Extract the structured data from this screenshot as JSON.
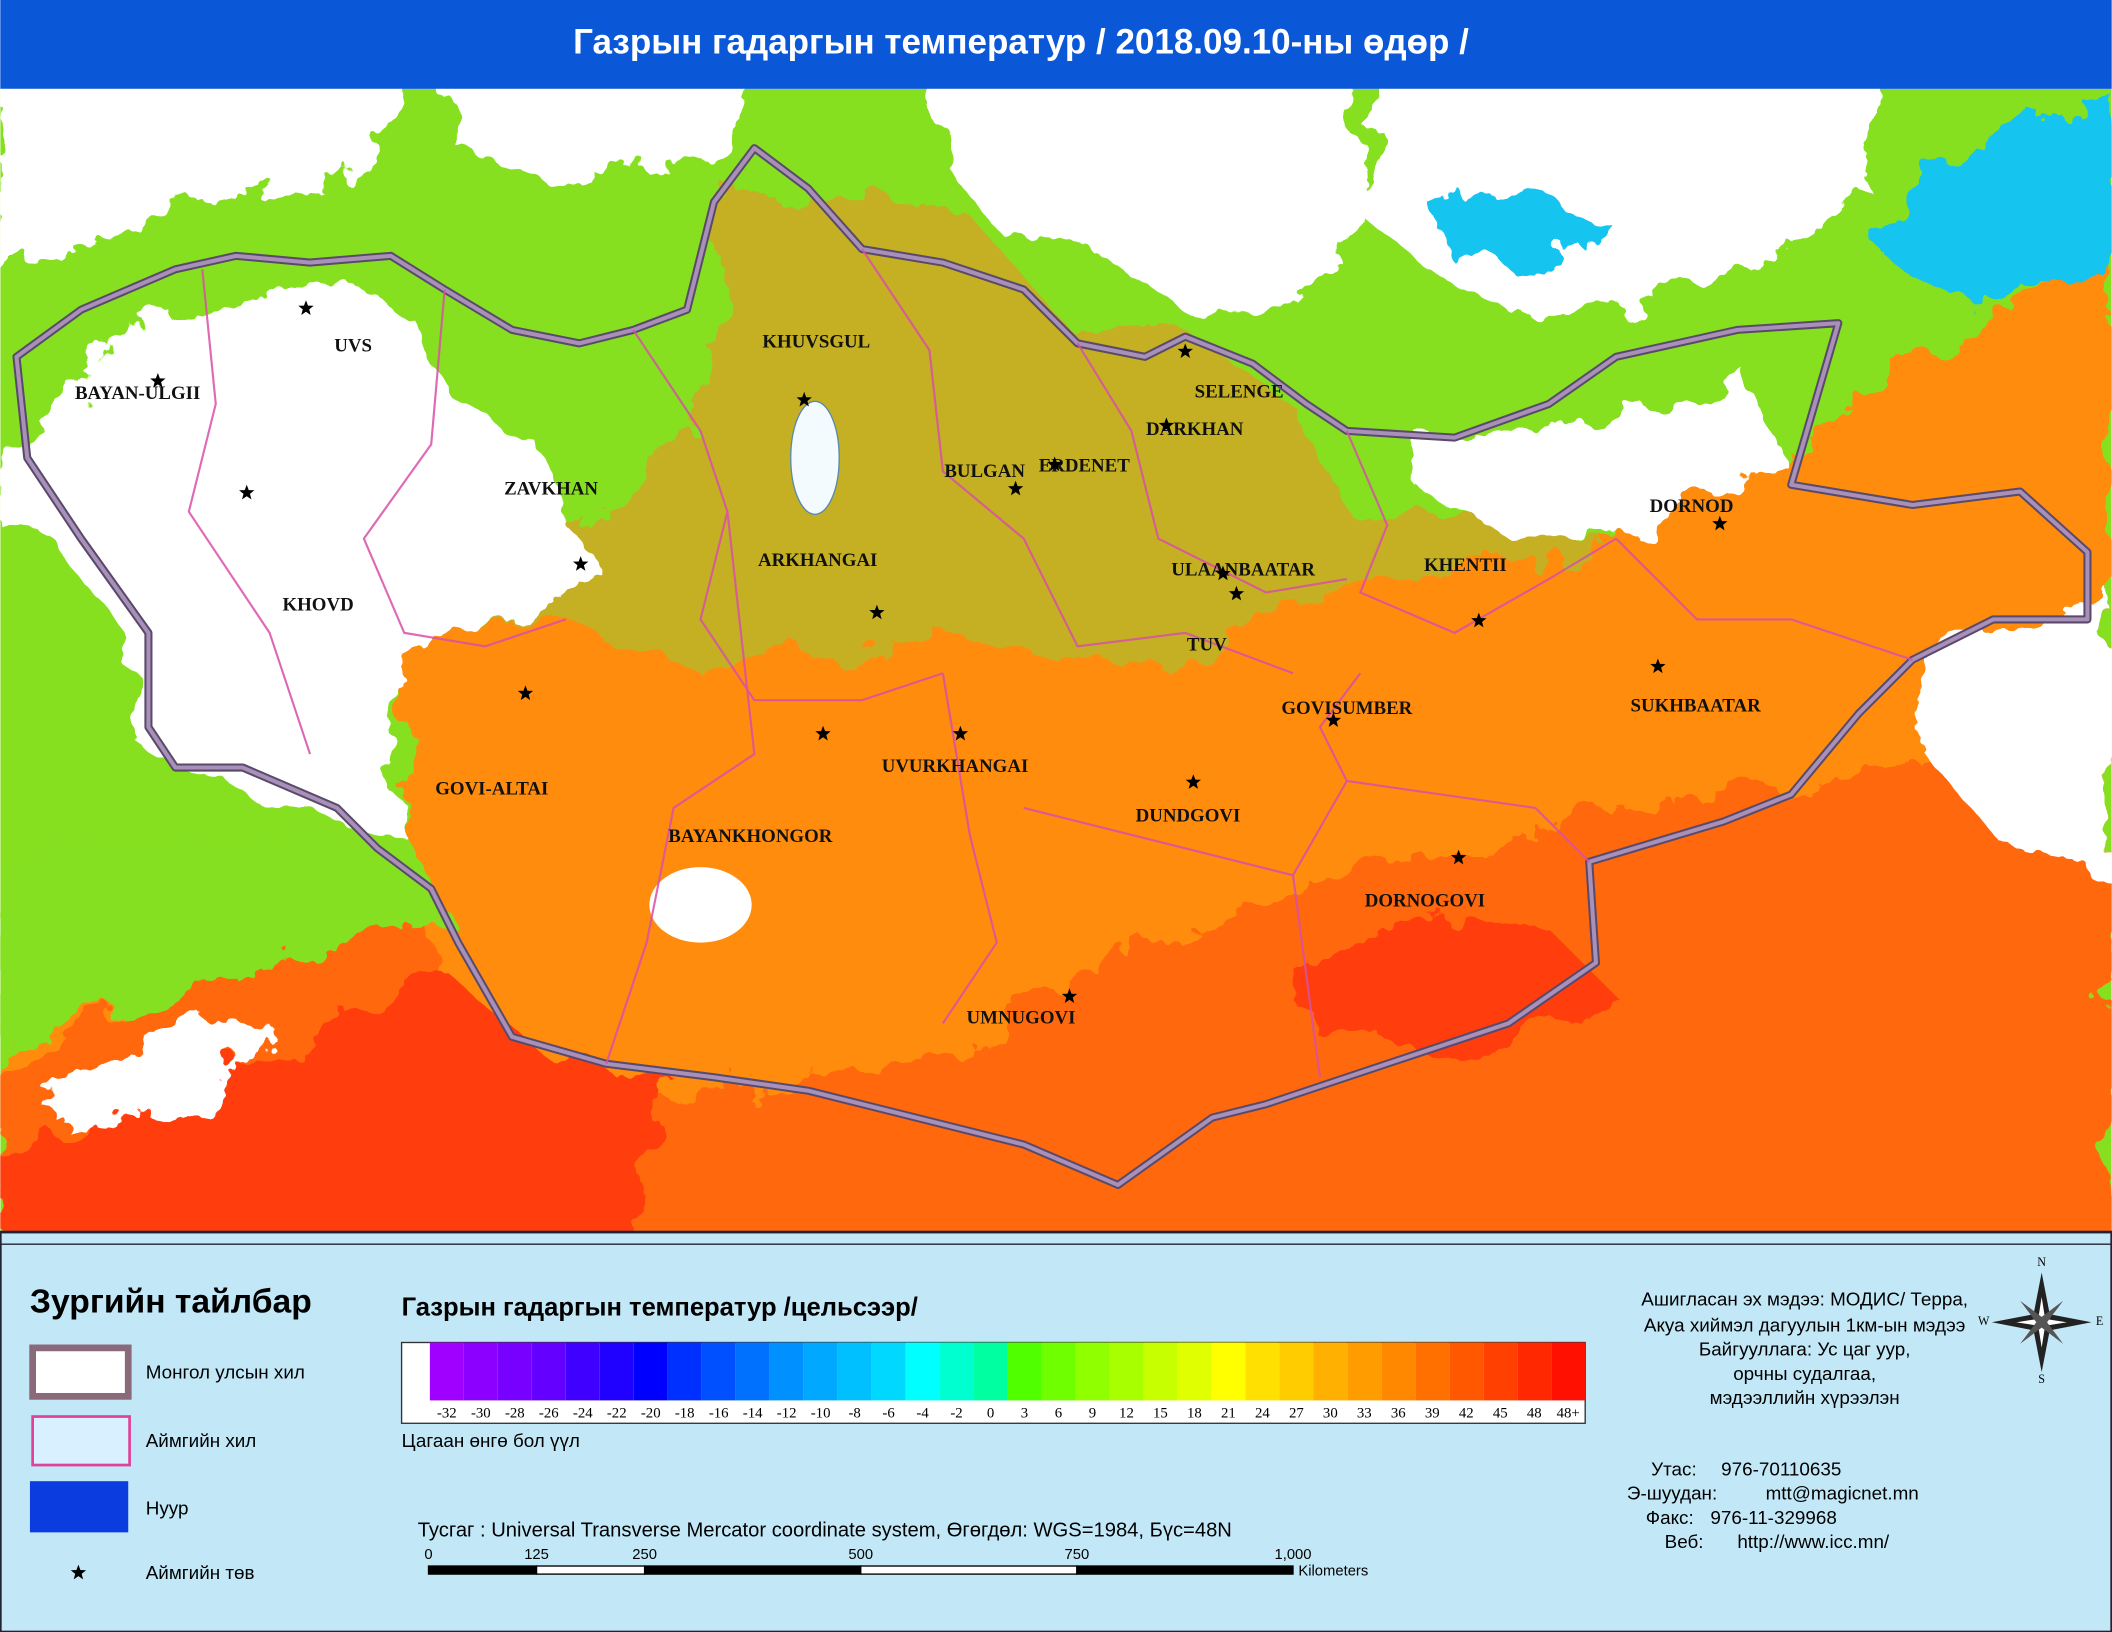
{
  "title": "Газрын гадаргын температур / 2018.09.10-ны өдөр /",
  "map": {
    "labels": [
      "UVS",
      "BAYAN-ULGII",
      "KHOVD",
      "ZAVKHAN",
      "KHUVSGUL",
      "BULGAN",
      "ERDENET",
      "SELENGE",
      "DARKHAN",
      "ARKHANGAI",
      "ULAANBAATAR",
      "KHENTII",
      "DORNOD",
      "TUV",
      "GOVISUMBER",
      "SUKHBAATAR",
      "GOVI-ALTAI",
      "UVURKHANGAI",
      "BAYANKHONGOR",
      "DUNDGOVI",
      "DORNOGOVI",
      "UMNUGOVI"
    ]
  },
  "legend": {
    "title": "Зургийн тайлбар",
    "items": [
      "Монгол улсын хил",
      "Аймгийн хил",
      "Нуур",
      "Аймгийн төв"
    ]
  },
  "color_scale": {
    "title": "Газрын гадаргын температур /цельсээр/",
    "labels": [
      -32,
      -30,
      -28,
      -26,
      -24,
      -22,
      -20,
      -18,
      -16,
      -14,
      -12,
      -10,
      -8,
      -6,
      -4,
      -2,
      0,
      3,
      6,
      9,
      12,
      15,
      18,
      21,
      24,
      27,
      30,
      33,
      36,
      39,
      42,
      45,
      48,
      "48+"
    ],
    "colors": [
      "#a000ff",
      "#8c00ff",
      "#7800ff",
      "#6400ff",
      "#4000ff",
      "#2000ff",
      "#0000ff",
      "#0030ff",
      "#0050ff",
      "#0070ff",
      "#0090ff",
      "#00a8ff",
      "#00c0ff",
      "#00d8ff",
      "#00ffff",
      "#00ffd0",
      "#00ffa0",
      "#50ff00",
      "#70ff00",
      "#90ff00",
      "#a8ff00",
      "#c8ff00",
      "#e0ff00",
      "#ffff00",
      "#ffe000",
      "#ffcc00",
      "#ffb000",
      "#ff9c00",
      "#ff8800",
      "#ff7000",
      "#ff5800",
      "#ff4000",
      "#ff2800",
      "#ff1000"
    ],
    "note": "Цагаан өнгө бол үүл"
  },
  "projection": "Тусгаг : Universal Transverse Mercator coordinate system, Өгөгдөл: WGS=1984, Бүс=48N",
  "scale_bar": {
    "ticks": [
      0,
      125,
      250,
      500,
      750,
      {
        "value": 1000,
        "label": "1,000"
      }
    ],
    "unit": "Kilometers"
  },
  "source": [
    "Ашигласан эх мэдээ: МОДИС/ Терра,",
    "Акуа хиймэл дагуулын 1км-ын мэдээ",
    "Байгууллага: Ус цаг уур,",
    "орчны судалгаа,",
    "мэдээллийн хүрээлэн"
  ],
  "contacts": [
    {
      "label": "Утас:",
      "value": "976-70110635"
    },
    {
      "label": "Э-шуудан:",
      "value": "mtt@magicnet.mn"
    },
    {
      "label": "Факс:",
      "value": "976-11-329968"
    },
    {
      "label": "Веб:",
      "value": "http://www.icc.mn/"
    }
  ],
  "compass": {
    "n": "N",
    "s": "S",
    "e": "E",
    "w": "W"
  }
}
